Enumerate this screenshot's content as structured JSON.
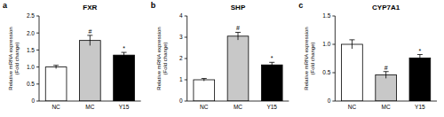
{
  "chart_data": [
    {
      "type": "bar",
      "panel": "a",
      "title": "FXR",
      "ylabel": "Relative mRNA expression (Fold change)",
      "categories": [
        "NC",
        "MC",
        "Y15"
      ],
      "values": [
        1.0,
        1.78,
        1.35
      ],
      "errors": [
        0.05,
        0.15,
        0.08
      ],
      "significance": [
        null,
        "#",
        "*"
      ],
      "colors": [
        "#ffffff",
        "#c8c8c8",
        "#000000"
      ],
      "ylim": [
        0,
        2.5
      ],
      "yticks": [
        0,
        0.5,
        {
          "value": 1,
          "label": "1.0"
        },
        1.5,
        {
          "value": 2,
          "label": "2.0"
        },
        2.5
      ]
    },
    {
      "type": "bar",
      "panel": "b",
      "title": "SHP",
      "ylabel": "Relative mRNA expression (Fold change)",
      "categories": [
        "NC",
        "MC",
        "Y15"
      ],
      "values": [
        1.0,
        3.05,
        1.7
      ],
      "errors": [
        0.06,
        0.18,
        0.12
      ],
      "significance": [
        null,
        "#",
        "*"
      ],
      "colors": [
        "#ffffff",
        "#c8c8c8",
        "#000000"
      ],
      "ylim": [
        0,
        4
      ],
      "yticks": [
        0,
        1,
        2,
        3,
        4
      ]
    },
    {
      "type": "bar",
      "panel": "c",
      "title": "CYP7A1",
      "ylabel": "Relative mRNA expression (Fold change)",
      "categories": [
        "NC",
        "MC",
        "Y15"
      ],
      "values": [
        1.0,
        0.46,
        0.76
      ],
      "errors": [
        0.08,
        0.06,
        0.06
      ],
      "significance": [
        null,
        "#",
        "*"
      ],
      "colors": [
        "#ffffff",
        "#c8c8c8",
        "#000000"
      ],
      "ylim": [
        0,
        1.5
      ],
      "yticks": [
        0,
        0.5,
        {
          "value": 1,
          "label": "1.0"
        },
        1.5
      ]
    }
  ]
}
